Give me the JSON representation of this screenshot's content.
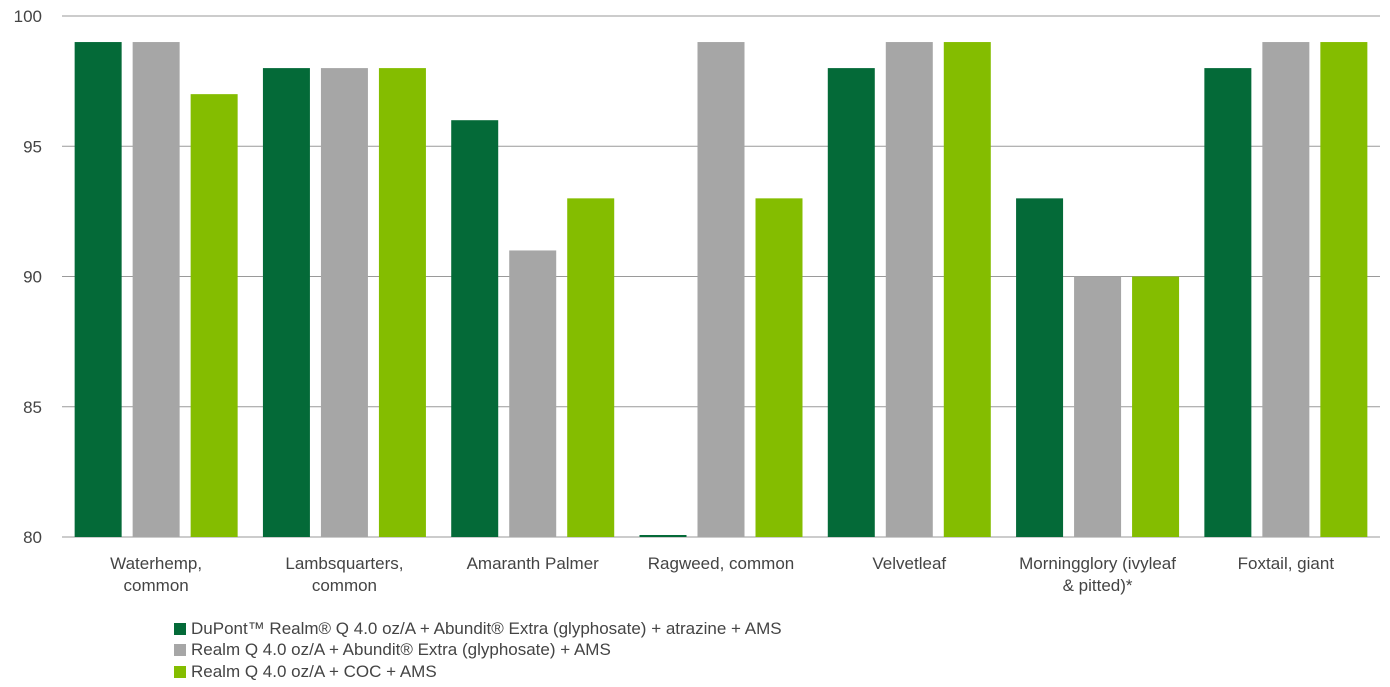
{
  "chart_data": {
    "type": "bar",
    "categories": [
      [
        "Waterhemp,",
        "common"
      ],
      [
        "Lambsquarters,",
        "common"
      ],
      [
        "Amaranth Palmer"
      ],
      [
        "Ragweed, common"
      ],
      [
        "Velvetleaf"
      ],
      [
        "Morningglory (ivyleaf",
        "& pitted)*"
      ],
      [
        "Foxtail, giant"
      ]
    ],
    "series": [
      {
        "name": "DuPont™ Realm® Q 4.0 oz/A + Abundit® Extra (glyphosate) + atrazine + AMS",
        "color": "#046a38",
        "values": [
          99,
          98,
          96,
          80,
          98,
          93,
          98
        ]
      },
      {
        "name": "Realm Q 4.0 oz/A + Abundit® Extra (glyphosate) + AMS",
        "color": "#a6a6a6",
        "values": [
          99,
          98,
          91,
          99,
          99,
          90,
          99
        ]
      },
      {
        "name": "Realm Q 4.0 oz/A + COC + AMS",
        "color": "#84bd00",
        "values": [
          97,
          98,
          93,
          93,
          99,
          90,
          99
        ]
      }
    ],
    "ylim": [
      80,
      100
    ],
    "yticks": [
      80,
      85,
      90,
      95,
      100
    ],
    "grid": true,
    "legend_position": "bottom-left",
    "title": "",
    "xlabel": "",
    "ylabel": ""
  }
}
